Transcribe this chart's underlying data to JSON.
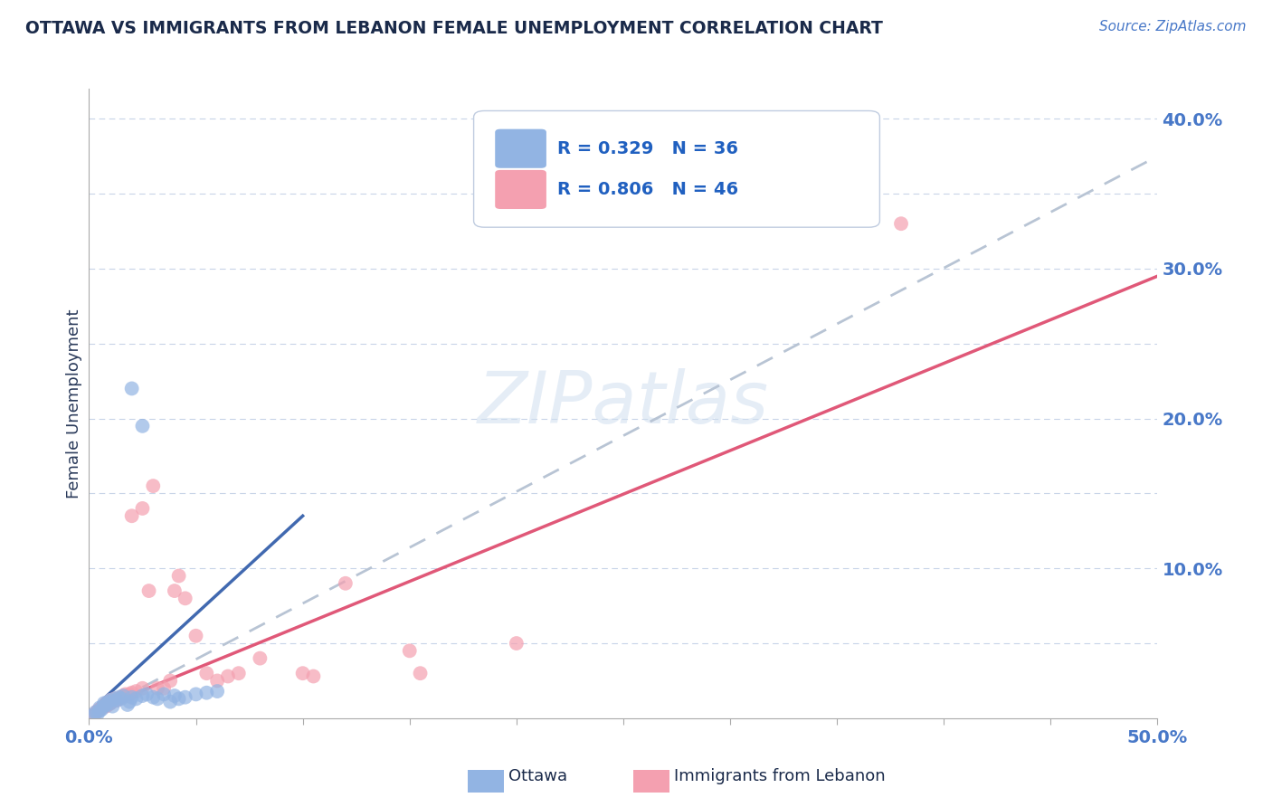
{
  "title": "OTTAWA VS IMMIGRANTS FROM LEBANON FEMALE UNEMPLOYMENT CORRELATION CHART",
  "source": "Source: ZipAtlas.com",
  "ylabel": "Female Unemployment",
  "xlim": [
    0.0,
    0.5
  ],
  "ylim": [
    0.0,
    0.42
  ],
  "xticks": [
    0.0,
    0.05,
    0.1,
    0.15,
    0.2,
    0.25,
    0.3,
    0.35,
    0.4,
    0.45,
    0.5
  ],
  "yticks": [
    0.0,
    0.05,
    0.1,
    0.15,
    0.2,
    0.25,
    0.3,
    0.35,
    0.4
  ],
  "watermark_text": "ZIPatlas",
  "legend_r1": "R = 0.329",
  "legend_n1": "N = 36",
  "legend_r2": "R = 0.806",
  "legend_n2": "N = 46",
  "ottawa_color": "#92b4e3",
  "lebanon_color": "#f4a0b0",
  "ottawa_line_color": "#4169b0",
  "lebanon_line_color": "#e05878",
  "dashed_line_color": "#b8c4d4",
  "ottawa_scatter": [
    [
      0.002,
      0.002
    ],
    [
      0.003,
      0.004
    ],
    [
      0.004,
      0.003
    ],
    [
      0.005,
      0.005
    ],
    [
      0.005,
      0.007
    ],
    [
      0.006,
      0.006
    ],
    [
      0.007,
      0.008
    ],
    [
      0.007,
      0.01
    ],
    [
      0.008,
      0.009
    ],
    [
      0.009,
      0.011
    ],
    [
      0.01,
      0.01
    ],
    [
      0.01,
      0.012
    ],
    [
      0.011,
      0.008
    ],
    [
      0.012,
      0.013
    ],
    [
      0.013,
      0.012
    ],
    [
      0.014,
      0.014
    ],
    [
      0.015,
      0.013
    ],
    [
      0.016,
      0.015
    ],
    [
      0.018,
      0.009
    ],
    [
      0.019,
      0.011
    ],
    [
      0.02,
      0.014
    ],
    [
      0.022,
      0.013
    ],
    [
      0.025,
      0.015
    ],
    [
      0.027,
      0.016
    ],
    [
      0.03,
      0.014
    ],
    [
      0.032,
      0.013
    ],
    [
      0.035,
      0.016
    ],
    [
      0.038,
      0.011
    ],
    [
      0.04,
      0.015
    ],
    [
      0.042,
      0.013
    ],
    [
      0.045,
      0.014
    ],
    [
      0.05,
      0.016
    ],
    [
      0.055,
      0.017
    ],
    [
      0.06,
      0.018
    ],
    [
      0.02,
      0.22
    ],
    [
      0.025,
      0.195
    ]
  ],
  "lebanon_scatter": [
    [
      0.002,
      0.002
    ],
    [
      0.003,
      0.003
    ],
    [
      0.004,
      0.005
    ],
    [
      0.005,
      0.006
    ],
    [
      0.006,
      0.007
    ],
    [
      0.007,
      0.008
    ],
    [
      0.008,
      0.008
    ],
    [
      0.008,
      0.01
    ],
    [
      0.009,
      0.009
    ],
    [
      0.01,
      0.01
    ],
    [
      0.01,
      0.012
    ],
    [
      0.011,
      0.011
    ],
    [
      0.012,
      0.013
    ],
    [
      0.013,
      0.012
    ],
    [
      0.014,
      0.013
    ],
    [
      0.015,
      0.014
    ],
    [
      0.016,
      0.015
    ],
    [
      0.017,
      0.016
    ],
    [
      0.018,
      0.015
    ],
    [
      0.019,
      0.016
    ],
    [
      0.02,
      0.017
    ],
    [
      0.02,
      0.135
    ],
    [
      0.022,
      0.018
    ],
    [
      0.025,
      0.02
    ],
    [
      0.025,
      0.14
    ],
    [
      0.028,
      0.085
    ],
    [
      0.03,
      0.155
    ],
    [
      0.032,
      0.02
    ],
    [
      0.035,
      0.02
    ],
    [
      0.038,
      0.025
    ],
    [
      0.04,
      0.085
    ],
    [
      0.042,
      0.095
    ],
    [
      0.045,
      0.08
    ],
    [
      0.05,
      0.055
    ],
    [
      0.055,
      0.03
    ],
    [
      0.06,
      0.025
    ],
    [
      0.065,
      0.028
    ],
    [
      0.07,
      0.03
    ],
    [
      0.1,
      0.03
    ],
    [
      0.105,
      0.028
    ],
    [
      0.15,
      0.045
    ],
    [
      0.155,
      0.03
    ],
    [
      0.2,
      0.05
    ],
    [
      0.38,
      0.33
    ],
    [
      0.12,
      0.09
    ],
    [
      0.08,
      0.04
    ]
  ],
  "ottawa_line": {
    "x0": 0.0,
    "y0": 0.004,
    "x1": 0.1,
    "y1": 0.135
  },
  "lebanon_line": {
    "x0": 0.0,
    "y0": 0.004,
    "x1": 0.5,
    "y1": 0.295
  },
  "dashed_line": {
    "x0": 0.0,
    "y0": 0.002,
    "x1": 0.5,
    "y1": 0.375
  },
  "background_color": "#ffffff",
  "grid_color": "#c8d4e8",
  "title_color": "#1a2a4a",
  "axis_label_color": "#2a3a5a",
  "tick_color": "#4878c8",
  "source_color": "#4878c8"
}
